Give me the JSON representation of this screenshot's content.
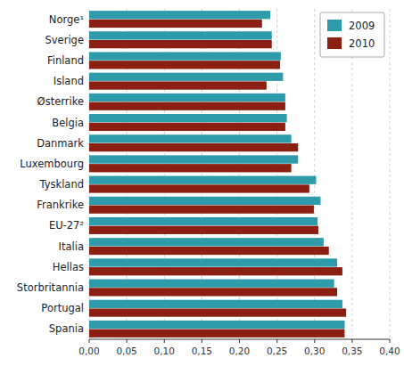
{
  "chart_data": {
    "type": "bar",
    "orientation": "horizontal",
    "categories": [
      "Norge¹",
      "Sverige",
      "Finland",
      "Island",
      "Østerrike",
      "Belgia",
      "Danmark",
      "Luxembourg",
      "Tyskland",
      "Frankrike",
      "EU-27²",
      "Italia",
      "Hellas",
      "Storbritannia",
      "Portugal",
      "Spania"
    ],
    "series": [
      {
        "name": "2009",
        "color": "#2E9BAB",
        "values": [
          0.241,
          0.243,
          0.255,
          0.258,
          0.261,
          0.263,
          0.269,
          0.278,
          0.302,
          0.308,
          0.304,
          0.312,
          0.33,
          0.326,
          0.337,
          0.34
        ]
      },
      {
        "name": "2010",
        "color": "#8B2012",
        "values": [
          0.23,
          0.243,
          0.254,
          0.236,
          0.261,
          0.261,
          0.278,
          0.269,
          0.293,
          0.299,
          0.305,
          0.319,
          0.337,
          0.33,
          0.342,
          0.34
        ]
      }
    ],
    "xlim": [
      0.0,
      0.4
    ],
    "xticks": [
      {
        "value": 0.0,
        "label": "0,00"
      },
      {
        "value": 0.05,
        "label": "0,05"
      },
      {
        "value": 0.1,
        "label": "0,10"
      },
      {
        "value": 0.15,
        "label": "0,15"
      },
      {
        "value": 0.2,
        "label": "0,20"
      },
      {
        "value": 0.25,
        "label": "0,25"
      },
      {
        "value": 0.3,
        "label": "0,30"
      },
      {
        "value": 0.35,
        "label": "0,35"
      },
      {
        "value": 0.4,
        "label": "0,40"
      }
    ],
    "grid": true,
    "legend": "upper right"
  }
}
